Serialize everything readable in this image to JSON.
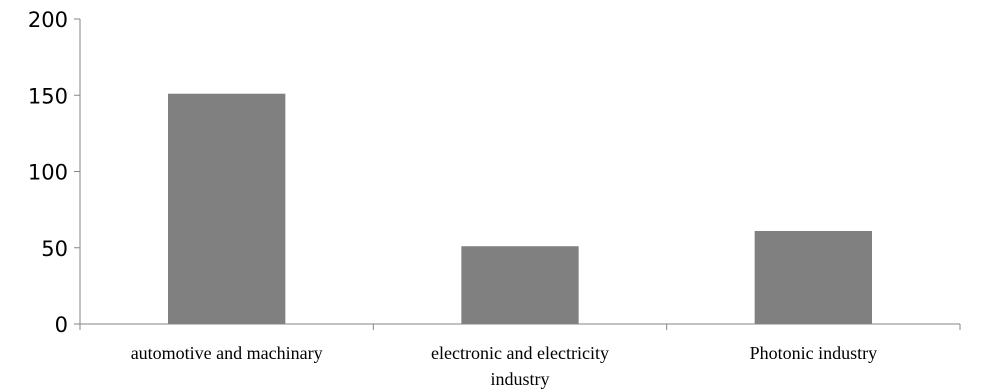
{
  "chart_data": {
    "type": "bar",
    "categories": [
      [
        "automotive and machinary"
      ],
      [
        "electronic and electricity",
        "industry"
      ],
      [
        "Photonic industry"
      ]
    ],
    "values": [
      151,
      51,
      61
    ],
    "ylim": [
      0,
      200
    ],
    "yticks": [
      0,
      50,
      100,
      150,
      200
    ],
    "grid": false,
    "legend": "none",
    "bar_color": "#808080",
    "axis_color": "#868686"
  }
}
